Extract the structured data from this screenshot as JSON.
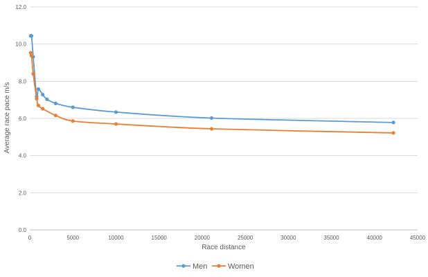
{
  "chart_data": {
    "type": "line",
    "title": "",
    "xlabel": "Race distance",
    "ylabel": "Average race pace m/s",
    "xlim": [
      0,
      45000
    ],
    "ylim": [
      0,
      12
    ],
    "x_ticks": [
      0,
      5000,
      10000,
      15000,
      20000,
      25000,
      30000,
      35000,
      40000,
      45000
    ],
    "x_tick_labels": [
      "0",
      "5000",
      "10000",
      "15000",
      "20000",
      "25000",
      "30000",
      "35000",
      "40000",
      "45000"
    ],
    "y_ticks": [
      0,
      2,
      4,
      6,
      8,
      10,
      12
    ],
    "y_tick_labels": [
      "0.0",
      "2.0",
      "4.0",
      "6.0",
      "8.0",
      "10.0",
      "12.0"
    ],
    "grid": "horizontal",
    "legend_position": "bottom",
    "series": [
      {
        "name": "Men",
        "color": "#5b9bd5",
        "x": [
          100,
          200,
          400,
          800,
          1000,
          1500,
          2000,
          3000,
          5000,
          10000,
          21097,
          42195
        ],
        "y": [
          10.44,
          10.44,
          9.32,
          7.18,
          7.58,
          7.28,
          7.03,
          6.81,
          6.6,
          6.34,
          6.02,
          5.78
        ]
      },
      {
        "name": "Women",
        "color": "#ed7d31",
        "x": [
          100,
          200,
          400,
          800,
          1000,
          1500,
          3000,
          5000,
          10000,
          21097,
          42195
        ],
        "y": [
          9.53,
          9.37,
          8.4,
          7.06,
          6.7,
          6.52,
          6.16,
          5.86,
          5.7,
          5.44,
          5.22
        ]
      }
    ]
  }
}
